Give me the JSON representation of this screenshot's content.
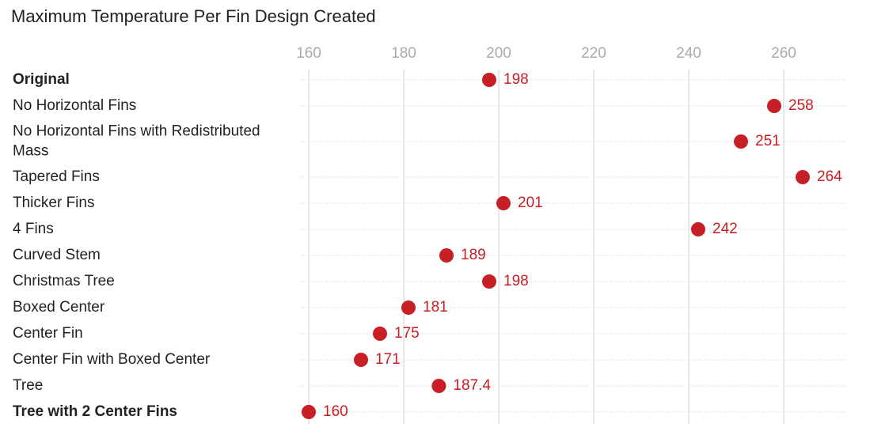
{
  "chart_data": {
    "type": "dot",
    "title": "Maximum Temperature Per Fin Design Created",
    "categories": [
      "Original",
      "No Horizontal Fins",
      "No Horizontal Fins with Redistributed Mass",
      "Tapered Fins",
      "Thicker Fins",
      "4 Fins",
      "Curved Stem",
      "Christmas Tree",
      "Boxed Center",
      "Center Fin",
      "Center Fin with Boxed Center",
      "Tree",
      "Tree with 2 Center Fins"
    ],
    "values": [
      198,
      258,
      251,
      264,
      201,
      242,
      189,
      198,
      181,
      175,
      171,
      187.4,
      160
    ],
    "color": "#c71f25",
    "bold_rows": [
      0,
      12
    ],
    "xlim": [
      160,
      273
    ],
    "xticks": [
      160,
      180,
      200,
      220,
      240,
      260
    ],
    "grid": true
  }
}
